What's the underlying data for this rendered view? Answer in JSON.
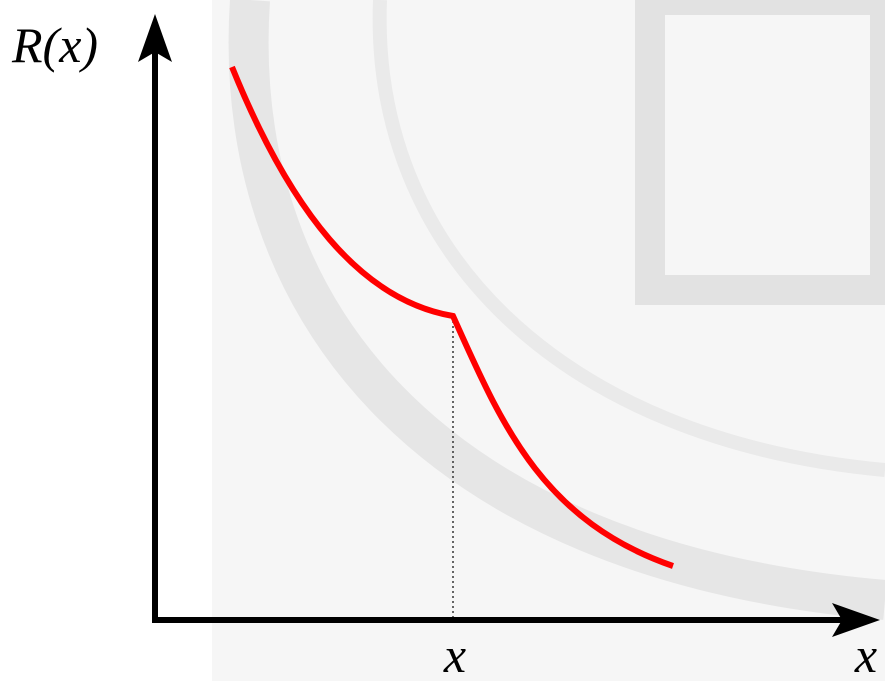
{
  "axes": {
    "y_label": "R(x)",
    "x_label": "x"
  },
  "point_label": "x"
}
